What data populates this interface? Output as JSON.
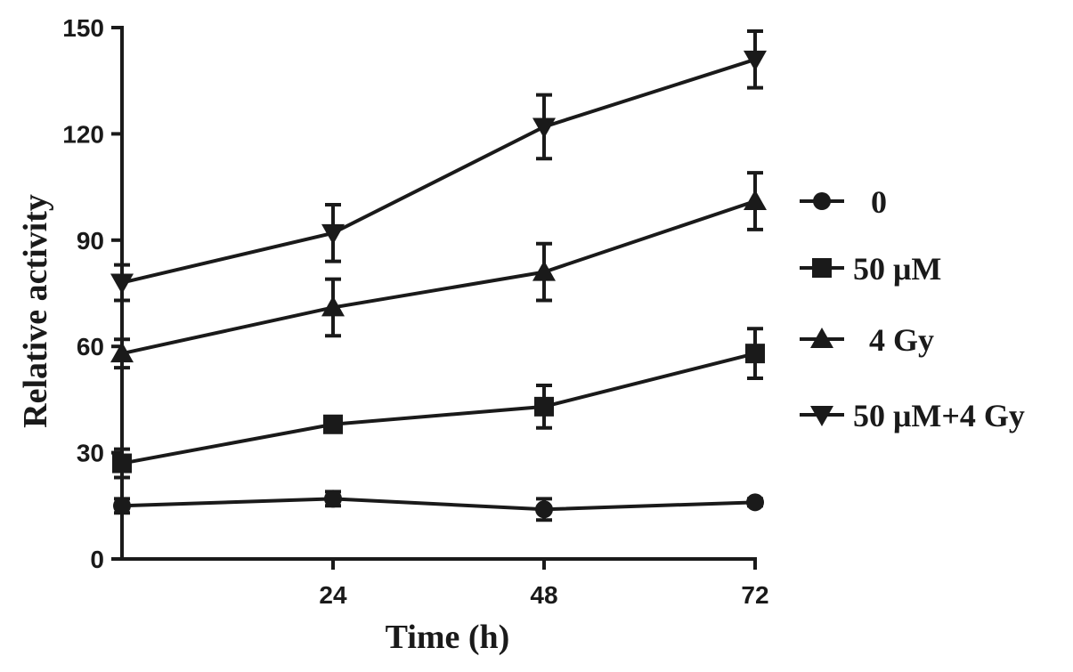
{
  "chart_data": {
    "type": "line",
    "title": "",
    "xlabel": "Time (h)",
    "ylabel": "Relative activity",
    "x": [
      0,
      24,
      48,
      72
    ],
    "x_ticks": [
      24,
      48,
      72
    ],
    "y_ticks": [
      0,
      30,
      60,
      90,
      120,
      150
    ],
    "xlim": [
      0,
      72
    ],
    "ylim": [
      0,
      150
    ],
    "grid": false,
    "legend_position": "right",
    "line_color": "#1a1a1a",
    "series": [
      {
        "name": "0",
        "marker": "circle",
        "values": [
          15,
          17,
          14,
          16
        ],
        "errors": [
          2,
          2,
          3,
          1
        ]
      },
      {
        "name": "50 μM",
        "marker": "square",
        "values": [
          27,
          38,
          43,
          58
        ],
        "errors": [
          4,
          2,
          6,
          7
        ]
      },
      {
        "name": "4 Gy",
        "marker": "triangle-up",
        "values": [
          58,
          71,
          81,
          101
        ],
        "errors": [
          4,
          8,
          8,
          8
        ]
      },
      {
        "name": "50 μM+4 Gy",
        "marker": "triangle-down",
        "values": [
          78,
          92,
          122,
          141
        ],
        "errors": [
          5,
          8,
          9,
          8
        ]
      }
    ]
  }
}
